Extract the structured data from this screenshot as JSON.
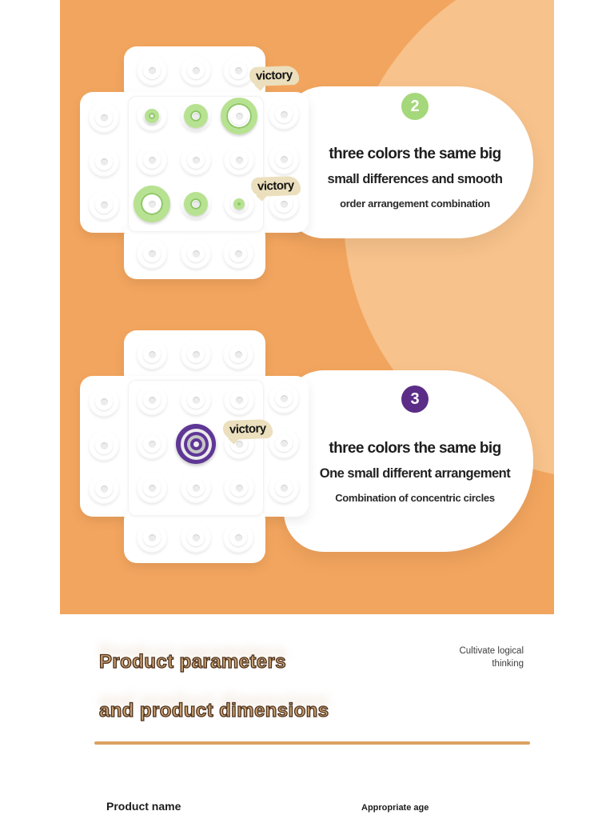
{
  "sections": [
    {
      "badge": "2",
      "title": "three colors the same big",
      "subtitle": "small differences and smooth",
      "caption": "order arrangement combination",
      "victories": [
        "victory",
        "victory"
      ]
    },
    {
      "badge": "3",
      "title": "three colors the same big",
      "subtitle": "One small different arrangement",
      "caption": "Combination of concentric circles",
      "victories": [
        "victory"
      ]
    }
  ],
  "boards": [
    {
      "name": "board-top",
      "pieces": [
        {
          "row": 0,
          "col": 0,
          "kind": "ring",
          "d": 18,
          "t": 5
        },
        {
          "row": 0,
          "col": 1,
          "kind": "ring",
          "d": 30,
          "t": 8
        },
        {
          "row": 0,
          "col": 2,
          "kind": "ring",
          "d": 46,
          "t": 7
        },
        {
          "row": 2,
          "col": 0,
          "kind": "ring",
          "d": 46,
          "t": 9
        },
        {
          "row": 2,
          "col": 1,
          "kind": "ring",
          "d": 30,
          "t": 8
        },
        {
          "row": 2,
          "col": 2,
          "kind": "ring",
          "d": 14,
          "t": 5
        }
      ]
    },
    {
      "name": "board-bottom",
      "pieces": [
        {
          "row": 1,
          "col": 1,
          "kind": "target",
          "d": 50,
          "rings": [
            "#5f3796",
            "#ececec",
            "#5f3796",
            "#c6c6c6",
            "#5f3796",
            "#efefef"
          ]
        }
      ]
    }
  ],
  "footer": {
    "heading_line1": "Product parameters",
    "heading_line2": "and product dimensions",
    "note_line1": "Cultivate logical",
    "note_line2": "thinking",
    "product_name_label": "Product name",
    "appropriate_age_label": "Appropriate age"
  },
  "colors": {
    "panel_bg": "#f2a55e",
    "panel_circle": "#f7c28b",
    "badge2": "#a5d77b",
    "badge3": "#5b2d87",
    "green_piece": "#b7e291",
    "green_piece_edge": "#8cc763",
    "purple_piece": "#5f3796",
    "bubble": "#ebdfbd",
    "heading_fill": "#c8a272",
    "heading_stroke": "#4c2f1b",
    "divider": "#daa263"
  }
}
